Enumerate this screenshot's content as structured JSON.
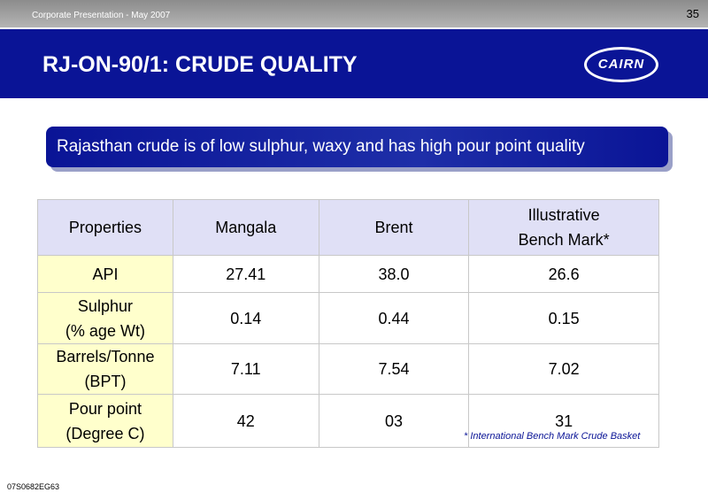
{
  "header": {
    "meta": "Corporate Presentation -  May 2007",
    "page_number": "35",
    "title": "RJ-ON-90/1: CRUDE QUALITY",
    "logo": "CAIRN"
  },
  "banner": "Rajasthan crude is of low sulphur, waxy and has high pour point quality",
  "table": {
    "columns": [
      [
        "Properties"
      ],
      [
        "Mangala"
      ],
      [
        "Brent"
      ],
      [
        "Illustrative",
        "Bench Mark*"
      ]
    ],
    "rows": [
      [
        [
          "API"
        ],
        [
          "27.41"
        ],
        [
          "38.0"
        ],
        [
          "26.6"
        ]
      ],
      [
        [
          "Sulphur",
          "(% age Wt)"
        ],
        [
          "0.14"
        ],
        [
          "0.44"
        ],
        [
          "0.15"
        ]
      ],
      [
        [
          "Barrels/Tonne",
          "(BPT)"
        ],
        [
          "7.11"
        ],
        [
          "7.54"
        ],
        [
          "7.02"
        ]
      ],
      [
        [
          "Pour point",
          "(Degree C)"
        ],
        [
          "42"
        ],
        [
          "03"
        ],
        [
          "31"
        ]
      ]
    ]
  },
  "footnote": "* International Bench Mark Crude Basket",
  "footer_code": "07S0682EG63"
}
